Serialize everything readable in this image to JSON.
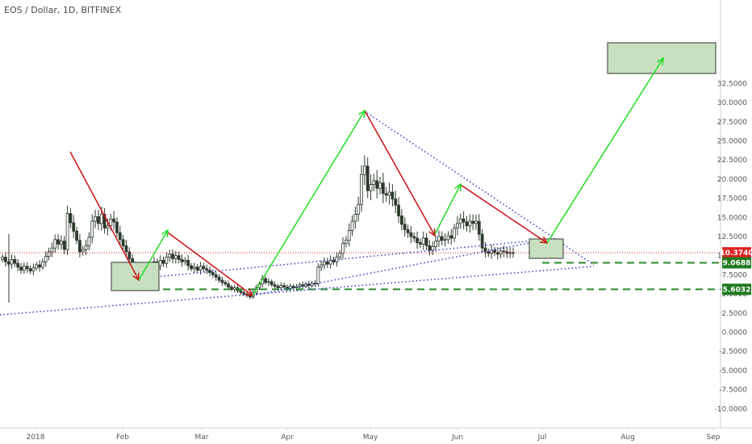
{
  "header": {
    "symbol_title": "EOS / Dollar, 1D, BITFINEX"
  },
  "colors": {
    "background": "#ffffff",
    "candle": "#2e3a2e",
    "up_arrow": "#22dd22",
    "down_arrow": "#cc1111",
    "trendline": "#4444cc",
    "current_price_line": "#e02020",
    "support_line": "#2b8a2b",
    "zone_fill": "#c8e0c0",
    "zone_border": "#333333"
  },
  "chart_data": {
    "type": "candlestick",
    "x_axis_labels": [
      "2018",
      "Feb",
      "Mar",
      "Apr",
      "May",
      "Jun",
      "Jul",
      "Aug",
      "Sep"
    ],
    "y_axis_ticks": [
      "32.5000",
      "30.0000",
      "27.5000",
      "25.0000",
      "22.5000",
      "20.0000",
      "17.5000",
      "15.0000",
      "12.5000",
      "10.0000",
      "7.5000",
      "5.0000",
      "2.5000",
      "0.0000",
      "-2.5000",
      "-5.0000",
      "-7.5000",
      "-10.0000"
    ],
    "ylim": [
      -10,
      32.5
    ],
    "price_labels": [
      {
        "value": "10.3740",
        "kind": "current"
      },
      {
        "value": "9.0688",
        "kind": "support"
      },
      {
        "value": "5.6032",
        "kind": "support"
      }
    ],
    "closes": [
      9.8,
      9.2,
      8.9,
      9.5,
      9.0,
      8.5,
      8.1,
      8.6,
      8.3,
      8.0,
      8.4,
      8.8,
      8.5,
      9.2,
      9.9,
      10.5,
      11.0,
      12.1,
      11.5,
      11.9,
      10.8,
      15.5,
      14.3,
      13.2,
      12.0,
      10.5,
      10.8,
      11.3,
      12.4,
      14.5,
      15.1,
      14.2,
      15.4,
      13.6,
      13.9,
      14.8,
      14.4,
      13.0,
      12.1,
      11.3,
      10.5,
      9.6,
      8.7,
      8.2,
      7.3,
      6.2,
      7.4,
      8.1,
      8.5,
      9.2,
      8.7,
      9.4,
      9.0,
      9.8,
      10.2,
      9.6,
      10.0,
      9.5,
      9.2,
      9.4,
      8.7,
      8.3,
      8.5,
      8.1,
      8.6,
      8.3,
      8.1,
      7.8,
      7.5,
      7.2,
      6.8,
      6.5,
      6.3,
      5.9,
      5.6,
      5.8,
      5.4,
      5.2,
      5.0,
      4.8,
      4.6,
      5.2,
      5.8,
      6.3,
      7.0,
      6.5,
      6.6,
      6.2,
      6.0,
      5.8,
      6.1,
      5.9,
      5.7,
      6.0,
      5.8,
      5.9,
      6.2,
      6.0,
      6.3,
      6.1,
      6.4,
      6.3,
      8.5,
      8.8,
      9.2,
      8.9,
      9.4,
      9.2,
      9.8,
      10.3,
      11.6,
      12.0,
      13.3,
      14.5,
      15.4,
      16.7,
      20.6,
      21.7,
      18.5,
      19.3,
      19.8,
      18.8,
      19.5,
      18.1,
      17.9,
      18.3,
      17.4,
      16.6,
      15.2,
      14.1,
      13.4,
      13.0,
      12.5,
      12.3,
      11.7,
      11.5,
      12.3,
      11.3,
      10.7,
      11.2,
      11.9,
      12.5,
      12.0,
      12.1,
      12.6,
      12.3,
      13.6,
      14.2,
      14.8,
      14.4,
      13.9,
      14.5,
      14.2,
      14.5,
      12.8,
      11.0,
      10.5,
      10.3,
      10.7,
      10.4,
      10.2,
      10.6,
      10.5,
      10.3,
      10.4,
      10.374
    ]
  }
}
